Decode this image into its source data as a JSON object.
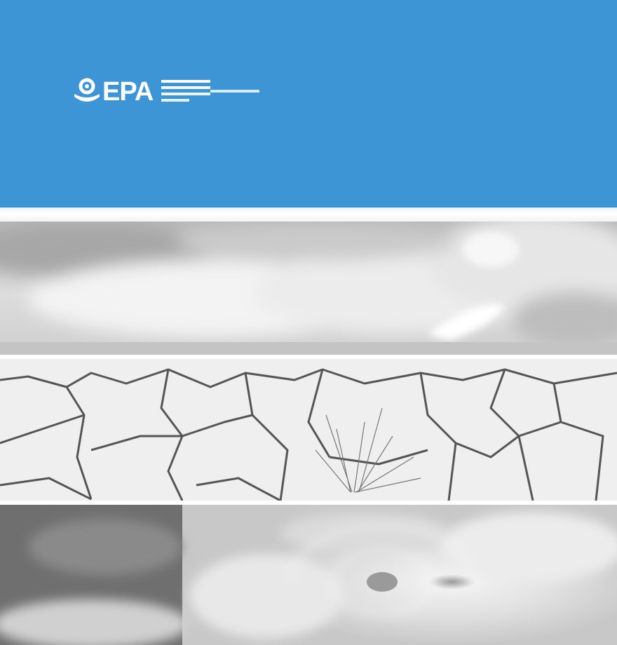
{
  "cover": {
    "logo_text": "EPA",
    "logo_icon": "epa-seal-icon",
    "colors": {
      "header_blue": "#3d95d6",
      "separator": "#ffffff"
    },
    "image_strips": [
      {
        "subject": "storm-clouds-photo"
      },
      {
        "subject": "cracked-drought-earth-photo"
      },
      {
        "subject": "hurricane-satellite-photo"
      }
    ]
  }
}
